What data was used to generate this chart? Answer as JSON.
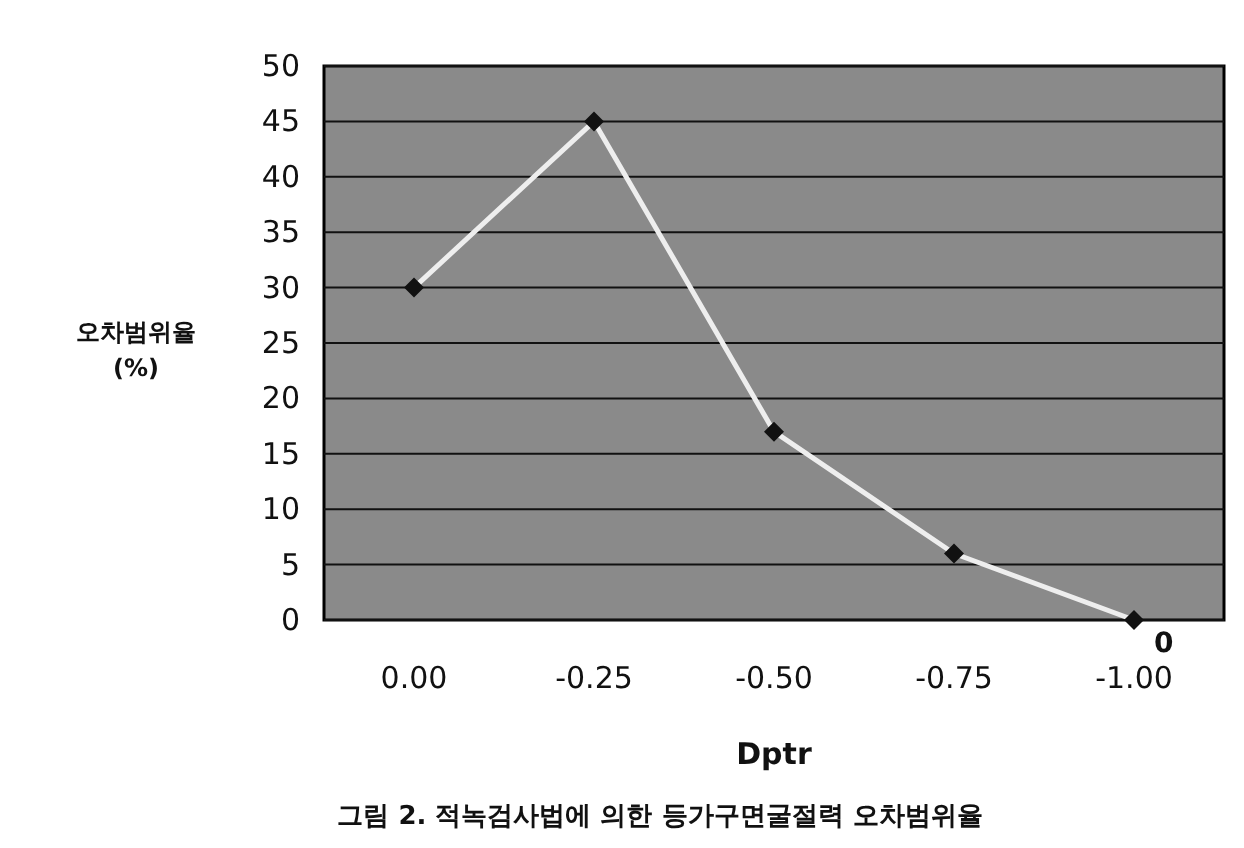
{
  "chart_data": {
    "type": "line",
    "xlabel": "Dptr",
    "ylabel": "오차범위율 (%)",
    "categories": [
      "0.00",
      "-0.25",
      "-0.50",
      "-0.75",
      "-1.00"
    ],
    "series": [
      {
        "color": "#eeeeee",
        "values": [
          30,
          45,
          17,
          6,
          0
        ]
      }
    ],
    "ylim": [
      0,
      50
    ],
    "yticks": [
      0,
      5,
      10,
      15,
      20,
      25,
      30,
      35,
      40,
      45,
      50
    ],
    "grid": "y",
    "marker": "diamond",
    "annotations": [
      {
        "text": "0",
        "x": "-1.00",
        "y": 0
      },
      "그림 2. 적녹검사법에 의한 등가구면굴절력 오차범위율"
    ]
  }
}
